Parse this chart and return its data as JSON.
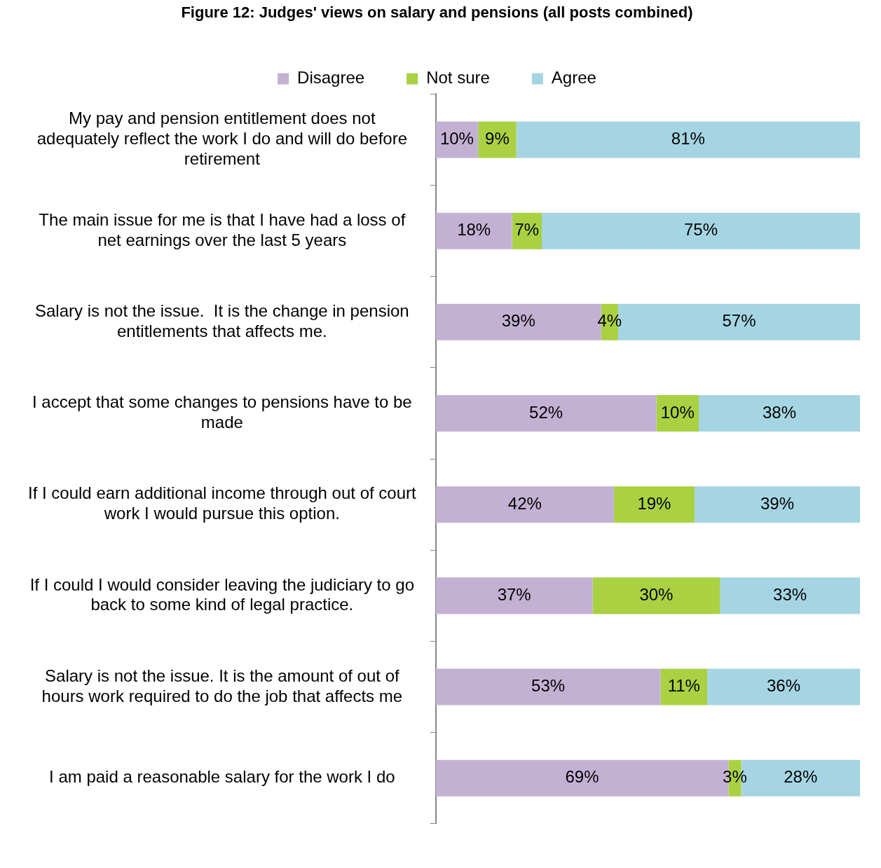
{
  "chart_data": {
    "type": "bar",
    "orientation": "horizontal",
    "stacked": true,
    "title": "Figure 12: Judges' views on salary and pensions (all posts combined)",
    "categories": [
      "My pay and pension entitlement does not adequately reflect the work I do and will do before retirement",
      "The main issue for me is that I have had a loss of net earnings over the last 5 years",
      "Salary is not the issue.  It is the change in pension entitlements that affects me.",
      "I accept that some changes to pensions have to be made",
      "If I could earn additional income through out of court work I would pursue this option.",
      "If I could I would consider leaving the judiciary to go back to some kind of legal practice.",
      "Salary is not the issue. It is the amount of out of hours work required to do the job that affects me",
      "I am paid a reasonable salary for the work I do"
    ],
    "series": [
      {
        "name": "Disagree",
        "color": "#c3b1d3",
        "values": [
          10,
          18,
          39,
          52,
          42,
          37,
          53,
          69
        ],
        "value_labels": [
          "10%",
          "18%",
          "39%",
          "52%",
          "42%",
          "37%",
          "53%",
          "69%"
        ]
      },
      {
        "name": "Not sure",
        "color": "#a9d142",
        "values": [
          9,
          7,
          4,
          10,
          19,
          30,
          11,
          3
        ],
        "value_labels": [
          "9%",
          "7%",
          "4%",
          "10%",
          "19%",
          "30%",
          "11%",
          "3%"
        ]
      },
      {
        "name": "Agree",
        "color": "#a5d5e3",
        "values": [
          81,
          75,
          57,
          38,
          39,
          33,
          36,
          28
        ],
        "value_labels": [
          "81%",
          "75%",
          "57%",
          "38%",
          "39%",
          "33%",
          "36%",
          "28%"
        ]
      }
    ],
    "legend": "top",
    "grid": false,
    "tick_labels": "y"
  }
}
